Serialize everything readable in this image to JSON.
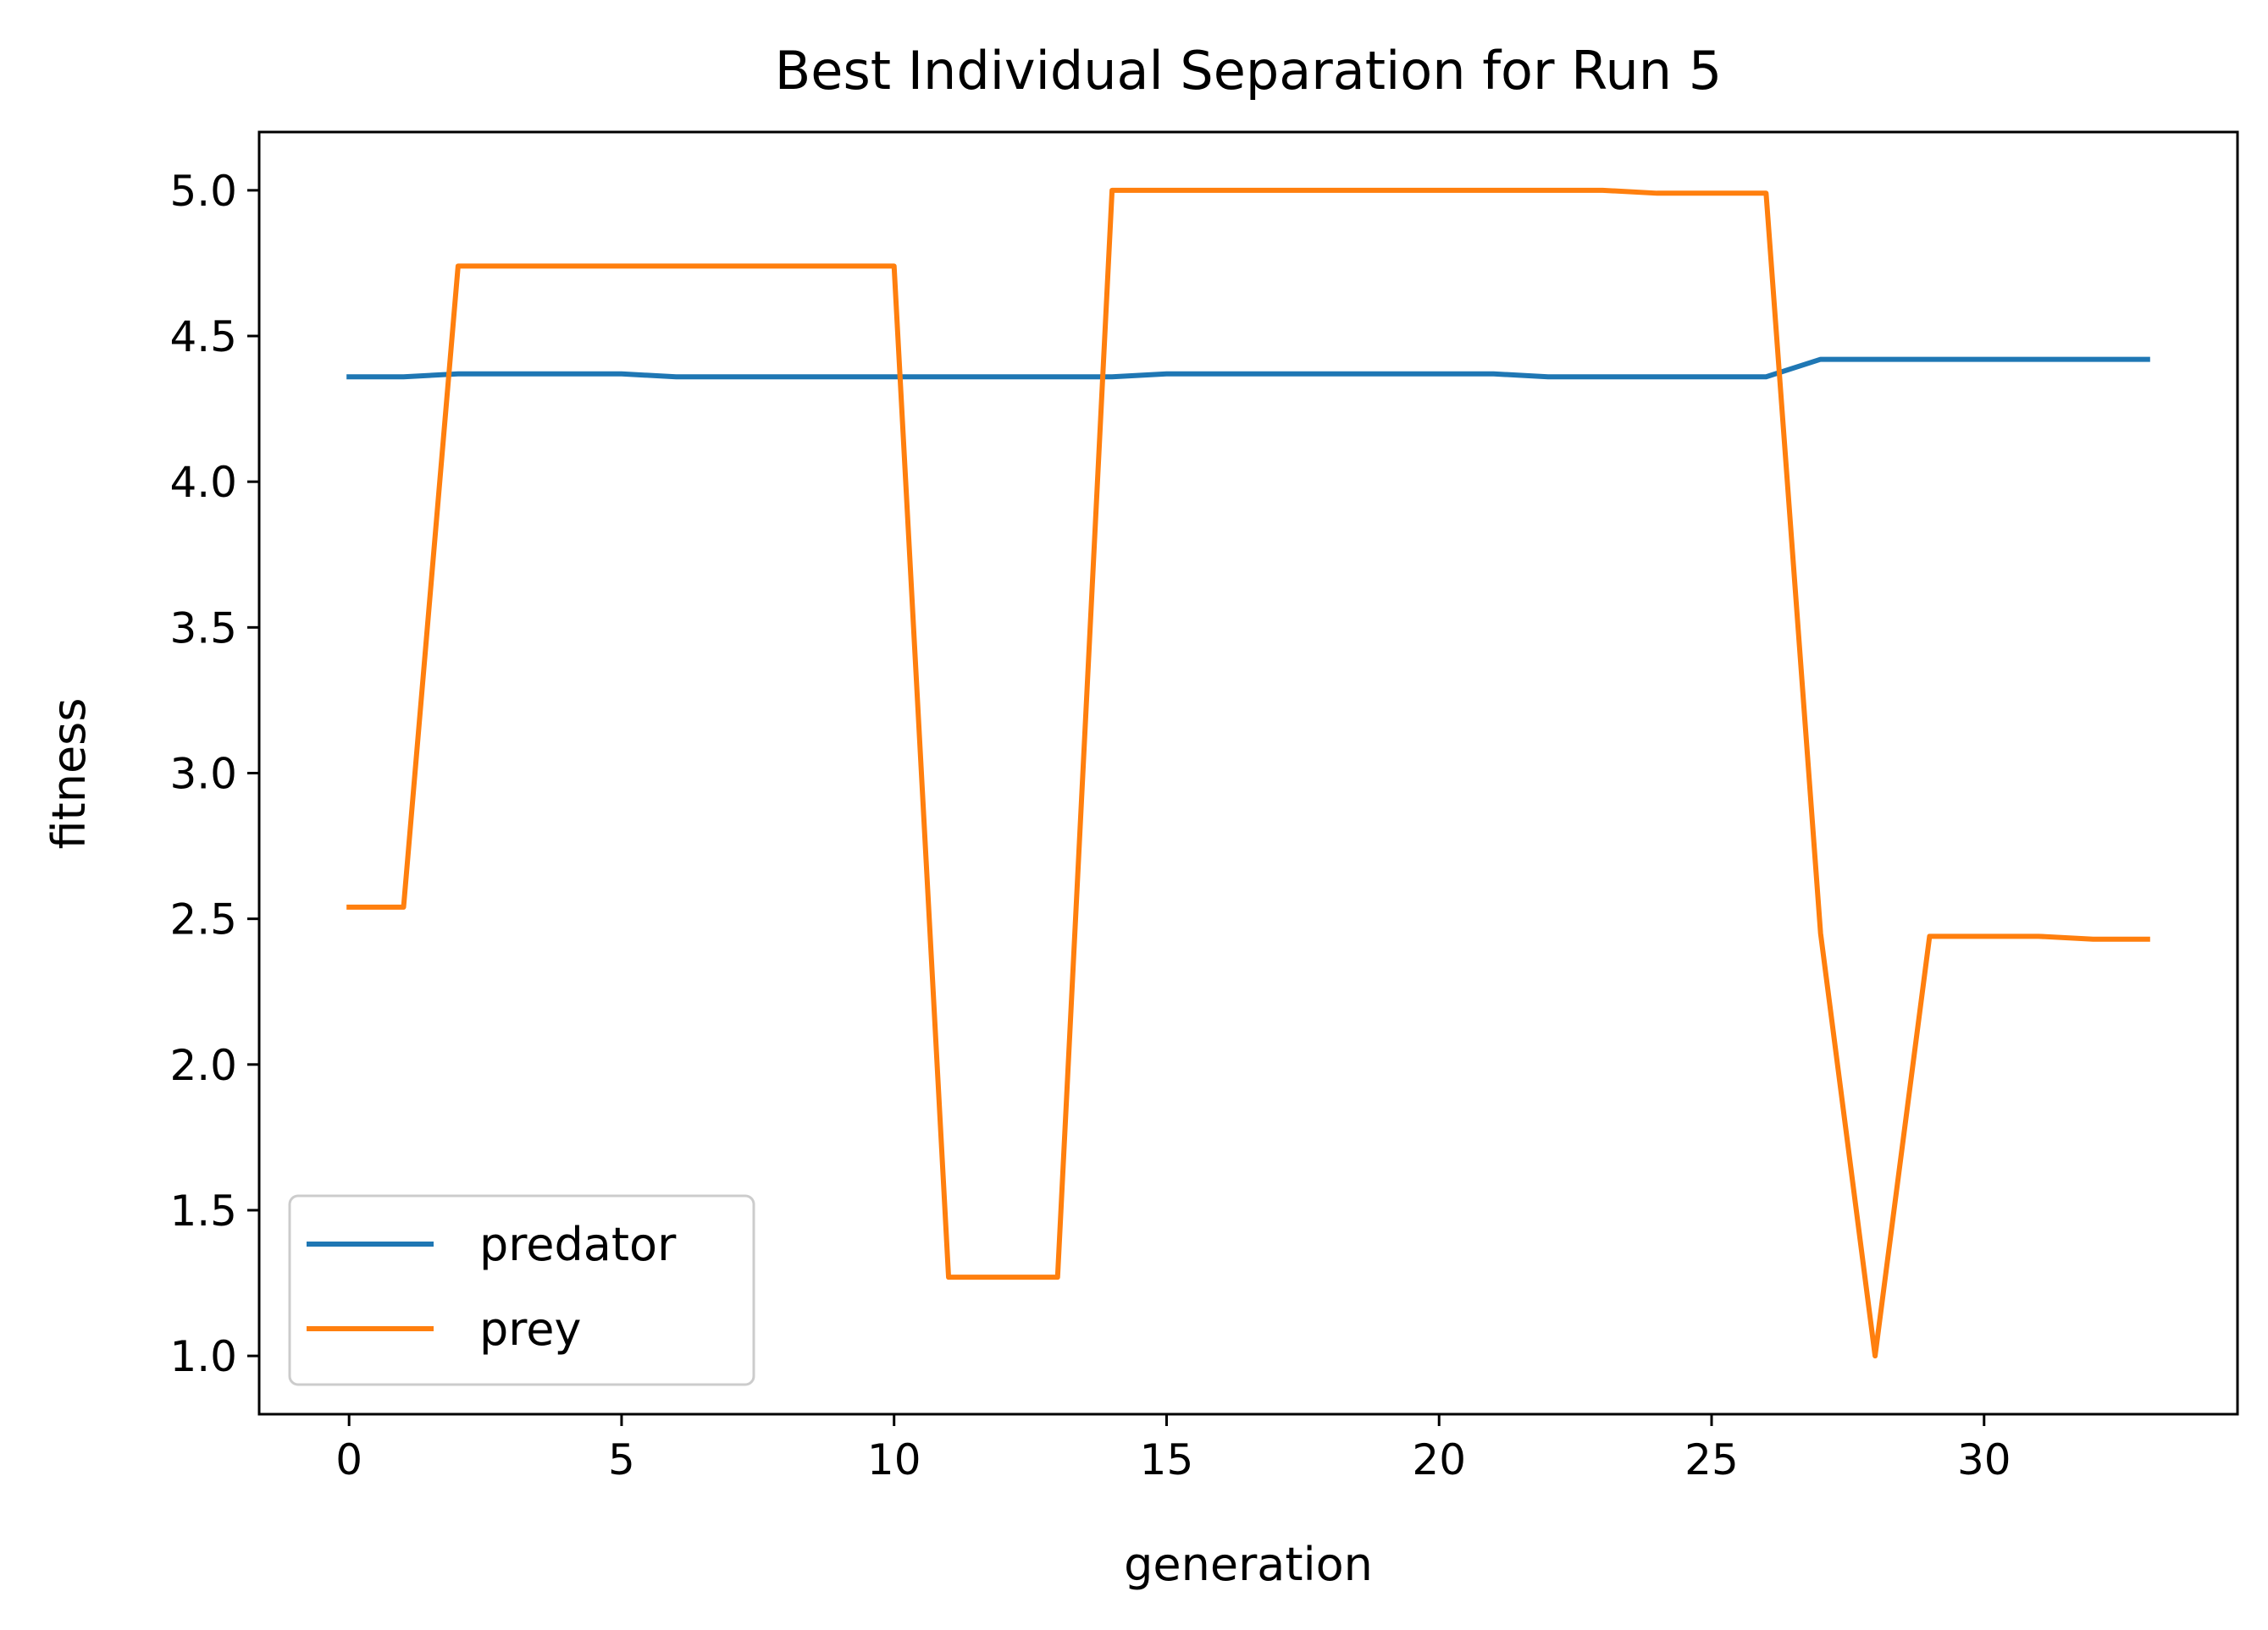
{
  "chart_data": {
    "type": "line",
    "title": "Best Individual Separation for Run 5",
    "xlabel": "generation",
    "ylabel": "fitness",
    "xlim": [
      -1.65,
      34.65
    ],
    "ylim": [
      0.8,
      5.2
    ],
    "xticks": [
      0,
      5,
      10,
      15,
      20,
      25,
      30
    ],
    "yticks": [
      1.0,
      1.5,
      2.0,
      2.5,
      3.0,
      3.5,
      4.0,
      4.5,
      5.0
    ],
    "xtick_labels": [
      "0",
      "5",
      "10",
      "15",
      "20",
      "25",
      "30"
    ],
    "ytick_labels": [
      "1.0",
      "1.5",
      "2.0",
      "2.5",
      "3.0",
      "3.5",
      "4.0",
      "4.5",
      "5.0"
    ],
    "grid": false,
    "legend_position": "lower-left",
    "x": [
      0,
      1,
      2,
      3,
      4,
      5,
      6,
      7,
      8,
      9,
      10,
      11,
      12,
      13,
      14,
      15,
      16,
      17,
      18,
      19,
      20,
      21,
      22,
      23,
      24,
      25,
      26,
      27,
      28,
      29,
      30,
      31,
      32,
      33
    ],
    "series": [
      {
        "name": "predator",
        "color": "#1f77b4",
        "values": [
          4.36,
          4.36,
          4.37,
          4.37,
          4.37,
          4.37,
          4.36,
          4.36,
          4.36,
          4.36,
          4.36,
          4.36,
          4.36,
          4.36,
          4.36,
          4.37,
          4.37,
          4.37,
          4.37,
          4.37,
          4.37,
          4.37,
          4.36,
          4.36,
          4.36,
          4.36,
          4.36,
          4.42,
          4.42,
          4.42,
          4.42,
          4.42,
          4.42,
          4.42
        ]
      },
      {
        "name": "prey",
        "color": "#ff7f0e",
        "values": [
          2.54,
          2.54,
          4.74,
          4.74,
          4.74,
          4.74,
          4.74,
          4.74,
          4.74,
          4.74,
          4.74,
          1.27,
          1.27,
          1.27,
          5.0,
          5.0,
          5.0,
          5.0,
          5.0,
          5.0,
          5.0,
          5.0,
          5.0,
          5.0,
          4.99,
          4.99,
          4.99,
          2.45,
          1.0,
          2.44,
          2.44,
          2.44,
          2.43,
          2.43
        ]
      }
    ]
  }
}
